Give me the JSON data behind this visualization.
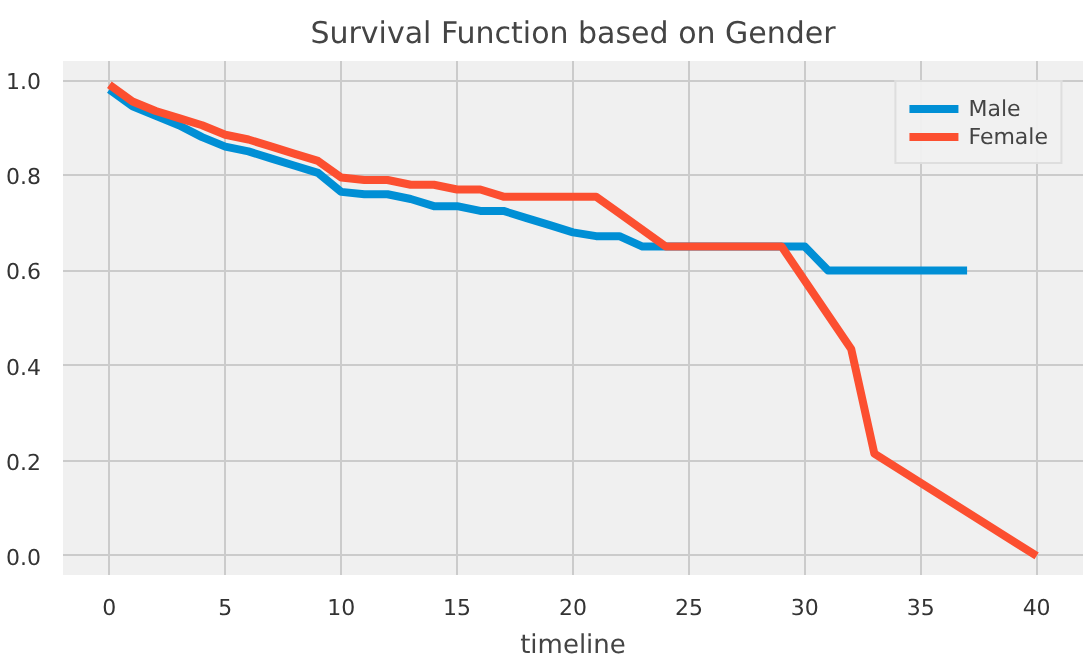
{
  "chart_data": {
    "type": "line",
    "title": "Survival Function based on Gender",
    "xlabel": "timeline",
    "xlim": [
      -2,
      42
    ],
    "ylim": [
      -0.04,
      1.04
    ],
    "xticks": [
      0,
      5,
      10,
      15,
      20,
      25,
      30,
      35,
      40
    ],
    "yticks": [
      {
        "value": 0,
        "label": "0.0"
      },
      {
        "value": 0.2,
        "label": "0.2"
      },
      {
        "value": 0.4,
        "label": "0.4"
      },
      {
        "value": 0.6,
        "label": "0.6"
      },
      {
        "value": 0.8,
        "label": "0.8"
      },
      {
        "value": 1,
        "label": "1.0"
      }
    ],
    "grid": true,
    "legend": "top right",
    "marker": "none",
    "line_style": "solid",
    "series": [
      {
        "name": "Male",
        "color": "#008fd5",
        "x": [
          0,
          1,
          2,
          3,
          4,
          5,
          6,
          7,
          8,
          9,
          10,
          11,
          12,
          13,
          14,
          15,
          16,
          17,
          18,
          19,
          20,
          21,
          22,
          23,
          30,
          31,
          37
        ],
        "values": [
          0.98,
          0.945,
          0.925,
          0.905,
          0.88,
          0.86,
          0.85,
          0.835,
          0.82,
          0.805,
          0.765,
          0.76,
          0.76,
          0.75,
          0.735,
          0.735,
          0.725,
          0.725,
          0.71,
          0.695,
          0.68,
          0.672,
          0.672,
          0.65,
          0.65,
          0.6,
          0.6
        ]
      },
      {
        "name": "Female",
        "color": "#fc4f30",
        "x": [
          0,
          1,
          2,
          3,
          4,
          5,
          6,
          7,
          8,
          9,
          10,
          11,
          12,
          13,
          14,
          15,
          16,
          17,
          21,
          22,
          24,
          29,
          32,
          33,
          40
        ],
        "values": [
          0.99,
          0.955,
          0.935,
          0.92,
          0.905,
          0.885,
          0.875,
          0.86,
          0.845,
          0.83,
          0.795,
          0.79,
          0.79,
          0.78,
          0.78,
          0.77,
          0.77,
          0.755,
          0.755,
          0.72,
          0.65,
          0.65,
          0.435,
          0.215,
          0.0
        ]
      }
    ]
  }
}
